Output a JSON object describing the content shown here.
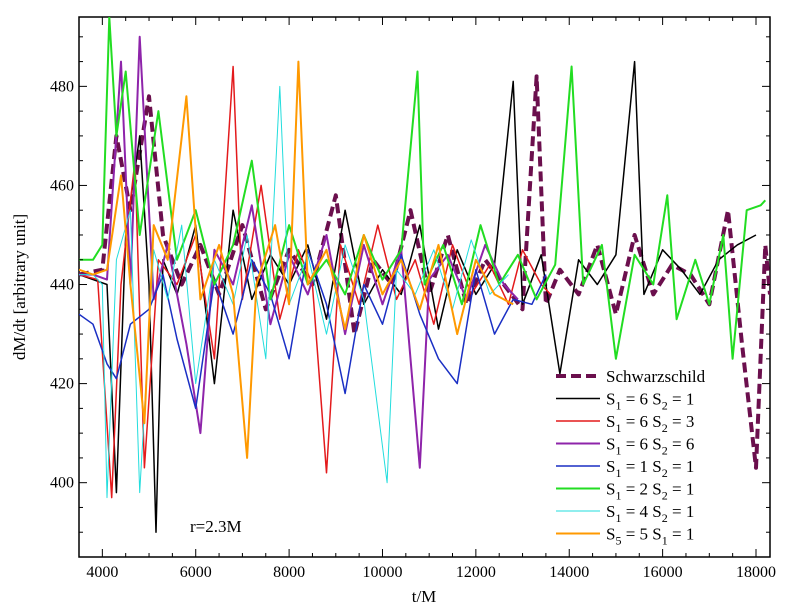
{
  "chart_data": {
    "type": "line",
    "xlabel": "t/M",
    "ylabel": "dM/dt [arbitrary unit]",
    "xlim": [
      3500,
      18300
    ],
    "ylim": [
      385,
      494
    ],
    "xticks": [
      4000,
      6000,
      8000,
      10000,
      12000,
      14000,
      16000,
      18000
    ],
    "yticks": [
      400,
      420,
      440,
      460,
      480
    ],
    "grid": false,
    "legend_position": "bottom-right",
    "annotation": "r=2.3M",
    "series": [
      {
        "name": "Schwarzschild",
        "label_main": "Schwarzschild",
        "color": "#6b0f4d",
        "dash": "10,5",
        "width": 4,
        "points": [
          [
            3500,
            442
          ],
          [
            4000,
            443
          ],
          [
            4300,
            470
          ],
          [
            4600,
            455
          ],
          [
            5000,
            478
          ],
          [
            5300,
            450
          ],
          [
            5700,
            440
          ],
          [
            6100,
            448
          ],
          [
            6500,
            438
          ],
          [
            7000,
            452
          ],
          [
            7500,
            435
          ],
          [
            8000,
            447
          ],
          [
            8500,
            440
          ],
          [
            9000,
            458
          ],
          [
            9400,
            430
          ],
          [
            9800,
            445
          ],
          [
            10200,
            440
          ],
          [
            10600,
            455
          ],
          [
            11000,
            438
          ],
          [
            11400,
            450
          ],
          [
            11800,
            436
          ],
          [
            12200,
            445
          ],
          [
            12600,
            440
          ],
          [
            13000,
            435
          ],
          [
            13300,
            482
          ],
          [
            13500,
            436
          ],
          [
            13800,
            443
          ],
          [
            14200,
            438
          ],
          [
            14600,
            448
          ],
          [
            15000,
            434
          ],
          [
            15400,
            450
          ],
          [
            15800,
            438
          ],
          [
            16200,
            444
          ],
          [
            16600,
            442
          ],
          [
            17000,
            436
          ],
          [
            17400,
            455
          ],
          [
            17700,
            428
          ],
          [
            18000,
            403
          ],
          [
            18200,
            448
          ],
          [
            18300,
            438
          ]
        ]
      },
      {
        "name": "S1 = 6 S2 = 1",
        "label_main": "S",
        "sub1": "1",
        "label_mid": " = 6  S",
        "sub2": "2",
        "label_end": " = 1",
        "color": "#000000",
        "dash": "",
        "width": 1.5,
        "points": [
          [
            3500,
            442
          ],
          [
            3800,
            441
          ],
          [
            4100,
            440
          ],
          [
            4300,
            398
          ],
          [
            4500,
            450
          ],
          [
            4800,
            470
          ],
          [
            5000,
            440
          ],
          [
            5150,
            390
          ],
          [
            5300,
            445
          ],
          [
            5600,
            438
          ],
          [
            6000,
            452
          ],
          [
            6400,
            420
          ],
          [
            6800,
            455
          ],
          [
            7200,
            437
          ],
          [
            7600,
            446
          ],
          [
            8000,
            440
          ],
          [
            8400,
            448
          ],
          [
            8800,
            433
          ],
          [
            9200,
            455
          ],
          [
            9600,
            436
          ],
          [
            10000,
            443
          ],
          [
            10400,
            438
          ],
          [
            10800,
            452
          ],
          [
            11200,
            431
          ],
          [
            11600,
            447
          ],
          [
            12000,
            438
          ],
          [
            12400,
            444
          ],
          [
            12800,
            481
          ],
          [
            13000,
            436
          ],
          [
            13400,
            446
          ],
          [
            13800,
            422
          ],
          [
            14200,
            445
          ],
          [
            14600,
            440
          ],
          [
            15000,
            446
          ],
          [
            15400,
            485
          ],
          [
            15600,
            438
          ],
          [
            16000,
            447
          ],
          [
            16400,
            443
          ],
          [
            16800,
            438
          ],
          [
            17200,
            445
          ],
          [
            17600,
            448
          ],
          [
            18000,
            450
          ]
        ]
      },
      {
        "name": "S1 = 6 S2 = 3",
        "label_main": "S",
        "sub1": "1",
        "label_mid": " = 6  S",
        "sub2": "2",
        "label_end": " = 3",
        "color": "#e31a1c",
        "dash": "",
        "width": 1.5,
        "points": [
          [
            3500,
            442
          ],
          [
            3900,
            441
          ],
          [
            4200,
            397
          ],
          [
            4400,
            440
          ],
          [
            4700,
            465
          ],
          [
            4900,
            403
          ],
          [
            5200,
            445
          ],
          [
            5600,
            440
          ],
          [
            6000,
            450
          ],
          [
            6400,
            425
          ],
          [
            6800,
            484
          ],
          [
            7000,
            437
          ],
          [
            7400,
            460
          ],
          [
            7800,
            433
          ],
          [
            8200,
            447
          ],
          [
            8500,
            440
          ],
          [
            8800,
            402
          ],
          [
            9100,
            448
          ],
          [
            9500,
            436
          ],
          [
            9900,
            452
          ],
          [
            10300,
            437
          ],
          [
            10700,
            445
          ],
          [
            11100,
            432
          ],
          [
            11500,
            448
          ],
          [
            11900,
            438
          ],
          [
            12300,
            444
          ],
          [
            12700,
            436
          ],
          [
            13000,
            447
          ],
          [
            13400,
            440
          ],
          [
            13600,
            438
          ]
        ]
      },
      {
        "name": "S1 = 6 S2 = 6",
        "label_main": "S",
        "sub1": "1",
        "label_mid": " = 6  S",
        "sub2": "2",
        "label_end": " = 6",
        "color": "#8e24aa",
        "dash": "",
        "width": 2,
        "points": [
          [
            3500,
            442
          ],
          [
            3800,
            442
          ],
          [
            4100,
            441
          ],
          [
            4400,
            485
          ],
          [
            4600,
            440
          ],
          [
            4800,
            490
          ],
          [
            5100,
            437
          ],
          [
            5400,
            448
          ],
          [
            5800,
            428
          ],
          [
            6100,
            410
          ],
          [
            6400,
            447
          ],
          [
            6800,
            440
          ],
          [
            7200,
            456
          ],
          [
            7600,
            432
          ],
          [
            8000,
            446
          ],
          [
            8400,
            438
          ],
          [
            8800,
            450
          ],
          [
            9200,
            430
          ],
          [
            9600,
            448
          ],
          [
            10000,
            436
          ],
          [
            10400,
            447
          ],
          [
            10800,
            403
          ],
          [
            11000,
            441
          ],
          [
            11400,
            446
          ],
          [
            11800,
            437
          ],
          [
            12200,
            448
          ],
          [
            12600,
            440
          ],
          [
            12900,
            437
          ]
        ]
      },
      {
        "name": "S1 = 1 S2 = 1",
        "label_main": "S",
        "sub1": "1",
        "label_mid": " = 1  S",
        "sub2": "2",
        "label_end": " = 1",
        "color": "#1a2fc4",
        "dash": "",
        "width": 1.5,
        "points": [
          [
            3500,
            434
          ],
          [
            3800,
            432
          ],
          [
            4100,
            424
          ],
          [
            4300,
            421
          ],
          [
            4600,
            432
          ],
          [
            5000,
            435
          ],
          [
            5300,
            442
          ],
          [
            5600,
            429
          ],
          [
            6000,
            415
          ],
          [
            6400,
            441
          ],
          [
            6800,
            430
          ],
          [
            7200,
            445
          ],
          [
            7600,
            438
          ],
          [
            8000,
            425
          ],
          [
            8400,
            447
          ],
          [
            8800,
            436
          ],
          [
            9200,
            418
          ],
          [
            9600,
            440
          ],
          [
            10000,
            432
          ],
          [
            10400,
            446
          ],
          [
            10800,
            434
          ],
          [
            11200,
            425
          ],
          [
            11600,
            420
          ],
          [
            12000,
            443
          ],
          [
            12400,
            430
          ],
          [
            12800,
            437
          ],
          [
            13200,
            436
          ],
          [
            13500,
            442
          ]
        ]
      },
      {
        "name": "S1 = 2 S2 = 1",
        "label_main": "S",
        "sub1": "1",
        "label_mid": " = 2  S",
        "sub2": "2",
        "label_end": " = 1",
        "color": "#22dd22",
        "dash": "",
        "width": 2,
        "points": [
          [
            3500,
            445
          ],
          [
            3800,
            445
          ],
          [
            4000,
            448
          ],
          [
            4150,
            494
          ],
          [
            4300,
            470
          ],
          [
            4500,
            483
          ],
          [
            4800,
            450
          ],
          [
            5200,
            475
          ],
          [
            5600,
            445
          ],
          [
            6000,
            455
          ],
          [
            6400,
            440
          ],
          [
            6800,
            448
          ],
          [
            7200,
            465
          ],
          [
            7600,
            437
          ],
          [
            8000,
            452
          ],
          [
            8400,
            440
          ],
          [
            8800,
            445
          ],
          [
            9200,
            438
          ],
          [
            9600,
            450
          ],
          [
            10000,
            441
          ],
          [
            10400,
            447
          ],
          [
            10750,
            483
          ],
          [
            10900,
            440
          ],
          [
            11300,
            448
          ],
          [
            11700,
            436
          ],
          [
            12100,
            452
          ],
          [
            12500,
            440
          ],
          [
            12900,
            446
          ],
          [
            13300,
            437
          ],
          [
            13700,
            444
          ],
          [
            14050,
            484
          ],
          [
            14300,
            440
          ],
          [
            14700,
            448
          ],
          [
            15000,
            425
          ],
          [
            15400,
            446
          ],
          [
            15800,
            440
          ],
          [
            16100,
            458
          ],
          [
            16300,
            433
          ],
          [
            16700,
            445
          ],
          [
            17000,
            436
          ],
          [
            17300,
            450
          ],
          [
            17500,
            425
          ],
          [
            17800,
            455
          ],
          [
            18100,
            456
          ],
          [
            18200,
            457
          ]
        ]
      },
      {
        "name": "S1 = 4 S2 = 1",
        "label_main": "S",
        "sub1": "1",
        "label_mid": " = 4  S",
        "sub2": "2",
        "label_end": " = 1",
        "color": "#22dddd",
        "dash": "",
        "width": 1,
        "points": [
          [
            3500,
            442
          ],
          [
            3800,
            442
          ],
          [
            4000,
            440
          ],
          [
            4100,
            397
          ],
          [
            4300,
            445
          ],
          [
            4600,
            455
          ],
          [
            4800,
            398
          ],
          [
            5100,
            447
          ],
          [
            5400,
            437
          ],
          [
            5700,
            452
          ],
          [
            6000,
            420
          ],
          [
            6400,
            445
          ],
          [
            6800,
            436
          ],
          [
            7100,
            450
          ],
          [
            7500,
            425
          ],
          [
            7800,
            480
          ],
          [
            8000,
            436
          ],
          [
            8400,
            446
          ],
          [
            8800,
            430
          ],
          [
            9200,
            448
          ],
          [
            9600,
            437
          ],
          [
            10100,
            400
          ],
          [
            10300,
            443
          ],
          [
            10700,
            438
          ],
          [
            11100,
            447
          ],
          [
            11500,
            435
          ],
          [
            11900,
            449
          ],
          [
            12300,
            438
          ],
          [
            12700,
            442
          ]
        ]
      },
      {
        "name": "S5 = 5 S1 = 1",
        "label_main": "S",
        "sub1": "5",
        "label_mid": " = 5  S",
        "sub2": "1",
        "label_end": " = 1",
        "color": "#ff9900",
        "dash": "",
        "width": 2,
        "points": [
          [
            3500,
            443
          ],
          [
            3800,
            442
          ],
          [
            4100,
            443
          ],
          [
            4400,
            462
          ],
          [
            4600,
            440
          ],
          [
            4900,
            412
          ],
          [
            5100,
            452
          ],
          [
            5400,
            445
          ],
          [
            5800,
            478
          ],
          [
            6100,
            437
          ],
          [
            6500,
            448
          ],
          [
            6800,
            438
          ],
          [
            7100,
            405
          ],
          [
            7300,
            440
          ],
          [
            7700,
            452
          ],
          [
            8000,
            436
          ],
          [
            8200,
            485
          ],
          [
            8400,
            440
          ],
          [
            8800,
            447
          ],
          [
            9200,
            431
          ],
          [
            9600,
            450
          ],
          [
            10000,
            438
          ],
          [
            10400,
            445
          ],
          [
            10800,
            435
          ],
          [
            11200,
            448
          ],
          [
            11600,
            430
          ],
          [
            12000,
            445
          ],
          [
            12400,
            438
          ],
          [
            12800,
            436
          ]
        ]
      }
    ]
  }
}
